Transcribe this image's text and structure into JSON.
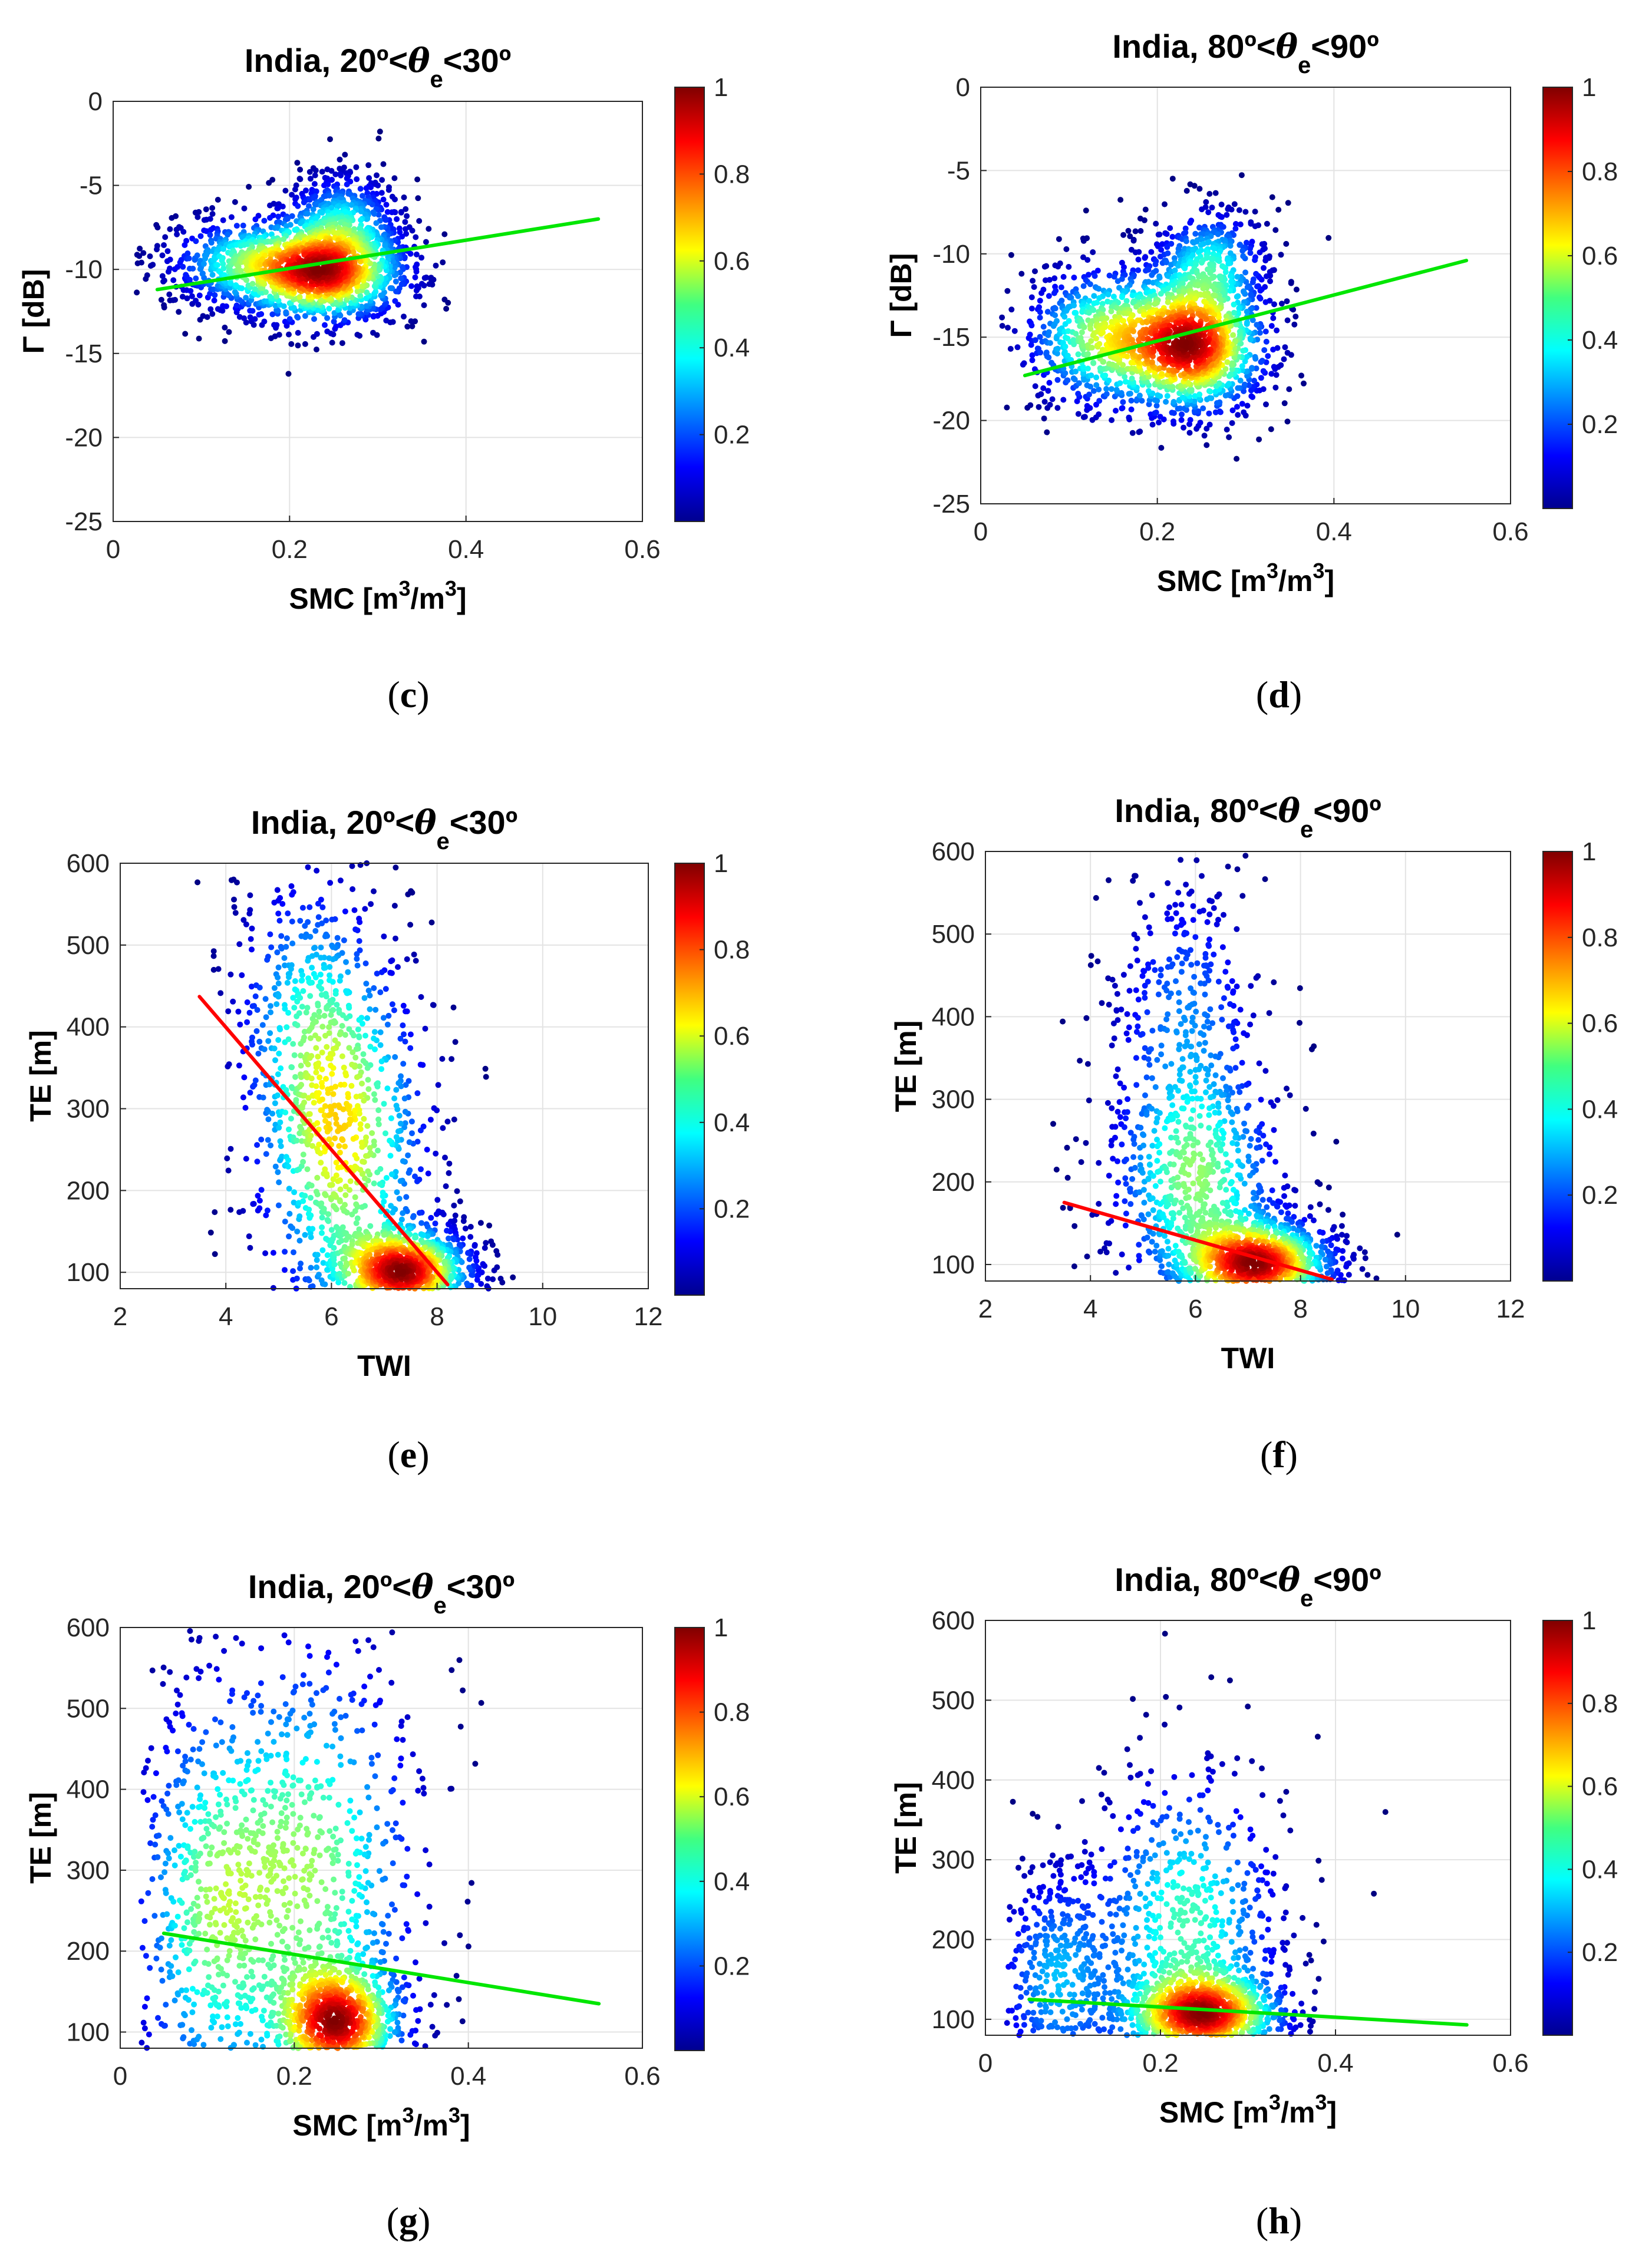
{
  "figure": {
    "colorbar": {
      "ticks": [
        "0.2",
        "0.4",
        "0.6",
        "0.8",
        "1"
      ],
      "colormap": "jet",
      "range": [
        0,
        1
      ]
    }
  },
  "chart_data": [
    {
      "id": "c",
      "type": "scatter",
      "caption": "c",
      "title_main": "India, 20º<",
      "title_symbol": "θ",
      "title_sub": "e",
      "title_end": "<30º",
      "xlabel_main": "SMC [m",
      "xlabel_sup1": "3",
      "xlabel_mid": "/m",
      "xlabel_sup2": "3",
      "xlabel_end": "]",
      "ylabel": "Γ [dB]",
      "xlim": [
        0,
        0.6
      ],
      "ylim": [
        -25,
        0
      ],
      "xticks": [
        "0",
        "0.2",
        "0.4",
        "0.6"
      ],
      "yticks": [
        "-25",
        "-20",
        "-15",
        "-10",
        "-5",
        "0"
      ],
      "fit_line": {
        "color": "#00e600",
        "x": [
          0.05,
          0.55
        ],
        "y": [
          -11.2,
          -7.0
        ]
      },
      "density_clusters": [
        {
          "x": 0.24,
          "y": -10.2,
          "sx": 0.05,
          "sy": 1.6,
          "w": 0.55
        },
        {
          "x": 0.15,
          "y": -9.6,
          "sx": 0.05,
          "sy": 1.5,
          "w": 0.25
        },
        {
          "x": 0.26,
          "y": -7.0,
          "sx": 0.035,
          "sy": 1.6,
          "w": 0.2
        }
      ]
    },
    {
      "id": "d",
      "type": "scatter",
      "caption": "d",
      "title_main": "India, 80º<",
      "title_symbol": "θ",
      "title_sub": "e",
      "title_end": "<90º",
      "xlabel_main": "SMC [m",
      "xlabel_sup1": "3",
      "xlabel_mid": "/m",
      "xlabel_sup2": "3",
      "xlabel_end": "]",
      "ylabel": "Γ [dB]",
      "xlim": [
        0,
        0.6
      ],
      "ylim": [
        -25,
        0
      ],
      "xticks": [
        "0",
        "0.2",
        "0.4",
        "0.6"
      ],
      "yticks": [
        "-25",
        "-20",
        "-15",
        "-10",
        "-5",
        "0"
      ],
      "fit_line": {
        "color": "#00e600",
        "x": [
          0.05,
          0.55
        ],
        "y": [
          -17.3,
          -10.4
        ]
      },
      "density_clusters": [
        {
          "x": 0.24,
          "y": -15.5,
          "sx": 0.045,
          "sy": 2.2,
          "w": 0.5
        },
        {
          "x": 0.14,
          "y": -15.0,
          "sx": 0.05,
          "sy": 2.3,
          "w": 0.3
        },
        {
          "x": 0.26,
          "y": -10.5,
          "sx": 0.035,
          "sy": 1.8,
          "w": 0.2
        }
      ]
    },
    {
      "id": "e",
      "type": "scatter",
      "caption": "e",
      "title_main": "India, 20º<",
      "title_symbol": "θ",
      "title_sub": "e",
      "title_end": "<30º",
      "xlabel_main": "TWI",
      "xlabel_sup1": "",
      "xlabel_mid": "",
      "xlabel_sup2": "",
      "xlabel_end": "",
      "ylabel": "TE [m]",
      "xlim": [
        2,
        12
      ],
      "ylim": [
        80,
        600
      ],
      "xticks": [
        "2",
        "4",
        "6",
        "8",
        "10",
        "12"
      ],
      "yticks": [
        "100",
        "200",
        "300",
        "400",
        "500",
        "600"
      ],
      "fit_line": {
        "color": "#ff0000",
        "x": [
          3.5,
          8.2
        ],
        "y": [
          437,
          85
        ]
      },
      "density_clusters": [
        {
          "x": 7.4,
          "y": 100,
          "sx": 0.7,
          "sy": 30,
          "w": 0.5
        },
        {
          "x": 6.2,
          "y": 260,
          "sx": 0.9,
          "sy": 120,
          "w": 0.35
        },
        {
          "x": 5.5,
          "y": 430,
          "sx": 0.8,
          "sy": 100,
          "w": 0.15
        }
      ]
    },
    {
      "id": "f",
      "type": "scatter",
      "caption": "f",
      "title_main": "India, 80º<",
      "title_symbol": "θ",
      "title_sub": "e",
      "title_end": "<90º",
      "xlabel_main": "TWI",
      "xlabel_sup1": "",
      "xlabel_mid": "",
      "xlabel_sup2": "",
      "xlabel_end": "",
      "ylabel": "TE [m]",
      "xlim": [
        2,
        12
      ],
      "ylim": [
        80,
        600
      ],
      "xticks": [
        "2",
        "4",
        "6",
        "8",
        "10",
        "12"
      ],
      "yticks": [
        "100",
        "200",
        "300",
        "400",
        "500",
        "600"
      ],
      "fit_line": {
        "color": "#ff0000",
        "x": [
          3.5,
          8.6
        ],
        "y": [
          175,
          82
        ]
      },
      "density_clusters": [
        {
          "x": 7.2,
          "y": 100,
          "sx": 0.8,
          "sy": 30,
          "w": 0.55
        },
        {
          "x": 6.0,
          "y": 200,
          "sx": 0.9,
          "sy": 80,
          "w": 0.3
        },
        {
          "x": 5.8,
          "y": 400,
          "sx": 0.8,
          "sy": 100,
          "w": 0.15
        }
      ]
    },
    {
      "id": "g",
      "type": "scatter",
      "caption": "g",
      "title_main": "India, 20º<",
      "title_symbol": "θ",
      "title_sub": "e",
      "title_end": "<30º",
      "xlabel_main": "SMC [m",
      "xlabel_sup1": "3",
      "xlabel_mid": "/m",
      "xlabel_sup2": "3",
      "xlabel_end": "]",
      "ylabel": "TE [m]",
      "xlim": [
        0,
        0.6
      ],
      "ylim": [
        80,
        600
      ],
      "xticks": [
        "0",
        "0.2",
        "0.4",
        "0.6"
      ],
      "yticks": [
        "100",
        "200",
        "300",
        "400",
        "500",
        "600"
      ],
      "fit_line": {
        "color": "#00e600",
        "x": [
          0.05,
          0.55
        ],
        "y": [
          222,
          135
        ]
      },
      "density_clusters": [
        {
          "x": 0.25,
          "y": 110,
          "sx": 0.04,
          "sy": 40,
          "w": 0.45
        },
        {
          "x": 0.22,
          "y": 300,
          "sx": 0.07,
          "sy": 160,
          "w": 0.3
        },
        {
          "x": 0.1,
          "y": 250,
          "sx": 0.05,
          "sy": 150,
          "w": 0.25
        }
      ]
    },
    {
      "id": "h",
      "type": "scatter",
      "caption": "h",
      "title_main": "India, 80º<",
      "title_symbol": "θ",
      "title_sub": "e",
      "title_end": "<90º",
      "xlabel_main": "SMC [m",
      "xlabel_sup1": "3",
      "xlabel_mid": "/m",
      "xlabel_sup2": "3",
      "xlabel_end": "]",
      "ylabel": "TE [m]",
      "xlim": [
        0,
        0.6
      ],
      "ylim": [
        80,
        600
      ],
      "xticks": [
        "0",
        "0.2",
        "0.4",
        "0.6"
      ],
      "yticks": [
        "100",
        "200",
        "300",
        "400",
        "500",
        "600"
      ],
      "fit_line": {
        "color": "#00e600",
        "x": [
          0.05,
          0.55
        ],
        "y": [
          125,
          93
        ]
      },
      "density_clusters": [
        {
          "x": 0.25,
          "y": 105,
          "sx": 0.05,
          "sy": 30,
          "w": 0.5
        },
        {
          "x": 0.23,
          "y": 220,
          "sx": 0.06,
          "sy": 110,
          "w": 0.3
        },
        {
          "x": 0.08,
          "y": 150,
          "sx": 0.04,
          "sy": 80,
          "w": 0.2
        }
      ]
    }
  ]
}
